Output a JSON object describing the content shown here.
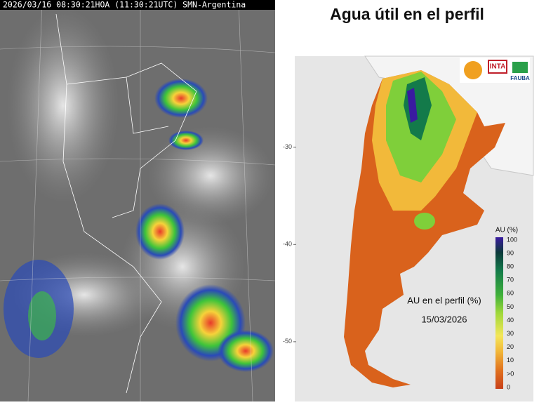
{
  "satellite": {
    "header": "2026/03/16 08:30:21HOA (11:30:21UTC) SMN-Argentina"
  },
  "map": {
    "title": "Agua útil en el perfil",
    "lat_lim": [
      -21.5,
      -56
    ],
    "lat_ticks": [
      -30,
      -40,
      -50
    ],
    "annotation": "AU en el perfil (%)",
    "date": "15/03/2026",
    "logos": [
      "INTA",
      "FAUBA"
    ],
    "legend": {
      "title": "AU (%)",
      "labels": [
        "100",
        "90",
        "80",
        "70",
        "60",
        "50",
        "40",
        "30",
        "20",
        "10",
        ">0",
        "0"
      ]
    }
  }
}
